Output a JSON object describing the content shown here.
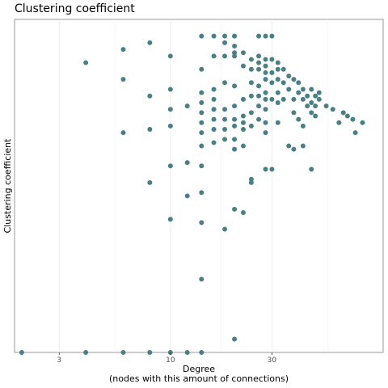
{
  "chart_data": {
    "type": "scatter",
    "title": "Clustering coefficient",
    "xlabel": "Degree",
    "xlabel_sub": "(nodes with this amount of connections)",
    "ylabel": "Clustering coefficient",
    "x_scale": "log10",
    "xlim": [
      1.85,
      100
    ],
    "ylim": [
      0,
      1
    ],
    "x_ticks": [
      3,
      10,
      30
    ],
    "x_tick_labels": [
      "3",
      "10",
      "30"
    ],
    "y_ticks": [],
    "grid": "vertical",
    "color": "#4a7f86",
    "points": [
      {
        "x": 2,
        "y": 0
      },
      {
        "x": 4,
        "y": 0
      },
      {
        "x": 6,
        "y": 0
      },
      {
        "x": 8,
        "y": 0
      },
      {
        "x": 10,
        "y": 0
      },
      {
        "x": 12,
        "y": 0
      },
      {
        "x": 14,
        "y": 0
      },
      {
        "x": 4,
        "y": 0.87
      },
      {
        "x": 6,
        "y": 0.91
      },
      {
        "x": 6,
        "y": 0.82
      },
      {
        "x": 6,
        "y": 0.66
      },
      {
        "x": 8,
        "y": 0.93
      },
      {
        "x": 8,
        "y": 0.77
      },
      {
        "x": 8,
        "y": 0.67
      },
      {
        "x": 8,
        "y": 0.51
      },
      {
        "x": 10,
        "y": 0.89
      },
      {
        "x": 10,
        "y": 0.79
      },
      {
        "x": 10,
        "y": 0.73
      },
      {
        "x": 10,
        "y": 0.68
      },
      {
        "x": 10,
        "y": 0.56
      },
      {
        "x": 10,
        "y": 0.4
      },
      {
        "x": 12,
        "y": 0.74
      },
      {
        "x": 12,
        "y": 0.57
      },
      {
        "x": 12,
        "y": 0.47
      },
      {
        "x": 14,
        "y": 0.95
      },
      {
        "x": 14,
        "y": 0.85
      },
      {
        "x": 14,
        "y": 0.78
      },
      {
        "x": 14,
        "y": 0.75
      },
      {
        "x": 14,
        "y": 0.72
      },
      {
        "x": 14,
        "y": 0.69
      },
      {
        "x": 14,
        "y": 0.66
      },
      {
        "x": 14,
        "y": 0.62
      },
      {
        "x": 14,
        "y": 0.56
      },
      {
        "x": 14,
        "y": 0.48
      },
      {
        "x": 14,
        "y": 0.39
      },
      {
        "x": 14,
        "y": 0.22
      },
      {
        "x": 16,
        "y": 0.95
      },
      {
        "x": 16,
        "y": 0.89
      },
      {
        "x": 16,
        "y": 0.79
      },
      {
        "x": 16,
        "y": 0.76
      },
      {
        "x": 16,
        "y": 0.73
      },
      {
        "x": 16,
        "y": 0.7
      },
      {
        "x": 16,
        "y": 0.67
      },
      {
        "x": 16,
        "y": 0.63
      },
      {
        "x": 18,
        "y": 0.95
      },
      {
        "x": 18,
        "y": 0.93
      },
      {
        "x": 18,
        "y": 0.89
      },
      {
        "x": 18,
        "y": 0.81
      },
      {
        "x": 18,
        "y": 0.73
      },
      {
        "x": 18,
        "y": 0.7
      },
      {
        "x": 18,
        "y": 0.67
      },
      {
        "x": 18,
        "y": 0.64
      },
      {
        "x": 18,
        "y": 0.37
      },
      {
        "x": 20,
        "y": 0.95
      },
      {
        "x": 20,
        "y": 0.92
      },
      {
        "x": 20,
        "y": 0.9
      },
      {
        "x": 20,
        "y": 0.89
      },
      {
        "x": 20,
        "y": 0.8
      },
      {
        "x": 20,
        "y": 0.74
      },
      {
        "x": 20,
        "y": 0.7
      },
      {
        "x": 20,
        "y": 0.68
      },
      {
        "x": 20,
        "y": 0.64
      },
      {
        "x": 20,
        "y": 0.61
      },
      {
        "x": 20,
        "y": 0.43
      },
      {
        "x": 20,
        "y": 0.04
      },
      {
        "x": 22,
        "y": 0.9
      },
      {
        "x": 22,
        "y": 0.86
      },
      {
        "x": 22,
        "y": 0.76
      },
      {
        "x": 22,
        "y": 0.71
      },
      {
        "x": 22,
        "y": 0.69
      },
      {
        "x": 22,
        "y": 0.67
      },
      {
        "x": 22,
        "y": 0.62
      },
      {
        "x": 22,
        "y": 0.42
      },
      {
        "x": 24,
        "y": 0.88
      },
      {
        "x": 24,
        "y": 0.85
      },
      {
        "x": 24,
        "y": 0.81
      },
      {
        "x": 24,
        "y": 0.77
      },
      {
        "x": 24,
        "y": 0.72
      },
      {
        "x": 24,
        "y": 0.68
      },
      {
        "x": 24,
        "y": 0.52
      },
      {
        "x": 24,
        "y": 0.51
      },
      {
        "x": 26,
        "y": 0.95
      },
      {
        "x": 26,
        "y": 0.89
      },
      {
        "x": 26,
        "y": 0.87
      },
      {
        "x": 26,
        "y": 0.85
      },
      {
        "x": 26,
        "y": 0.8
      },
      {
        "x": 26,
        "y": 0.77
      },
      {
        "x": 26,
        "y": 0.74
      },
      {
        "x": 26,
        "y": 0.7
      },
      {
        "x": 28,
        "y": 0.95
      },
      {
        "x": 28,
        "y": 0.88
      },
      {
        "x": 28,
        "y": 0.86
      },
      {
        "x": 28,
        "y": 0.84
      },
      {
        "x": 28,
        "y": 0.82
      },
      {
        "x": 28,
        "y": 0.78
      },
      {
        "x": 28,
        "y": 0.76
      },
      {
        "x": 28,
        "y": 0.73
      },
      {
        "x": 28,
        "y": 0.69
      },
      {
        "x": 28,
        "y": 0.66
      },
      {
        "x": 28,
        "y": 0.55
      },
      {
        "x": 30,
        "y": 0.95
      },
      {
        "x": 30,
        "y": 0.88
      },
      {
        "x": 30,
        "y": 0.84
      },
      {
        "x": 30,
        "y": 0.81
      },
      {
        "x": 30,
        "y": 0.76
      },
      {
        "x": 30,
        "y": 0.55
      },
      {
        "x": 32,
        "y": 0.87
      },
      {
        "x": 32,
        "y": 0.85
      },
      {
        "x": 32,
        "y": 0.82
      },
      {
        "x": 32,
        "y": 0.78
      },
      {
        "x": 32,
        "y": 0.75
      },
      {
        "x": 32,
        "y": 0.69
      },
      {
        "x": 34,
        "y": 0.85
      },
      {
        "x": 34,
        "y": 0.81
      },
      {
        "x": 34,
        "y": 0.76
      },
      {
        "x": 36,
        "y": 0.83
      },
      {
        "x": 36,
        "y": 0.79
      },
      {
        "x": 36,
        "y": 0.62
      },
      {
        "x": 38,
        "y": 0.82
      },
      {
        "x": 38,
        "y": 0.76
      },
      {
        "x": 38,
        "y": 0.72
      },
      {
        "x": 38,
        "y": 0.61
      },
      {
        "x": 40,
        "y": 0.81
      },
      {
        "x": 40,
        "y": 0.78
      },
      {
        "x": 40,
        "y": 0.7
      },
      {
        "x": 42,
        "y": 0.79
      },
      {
        "x": 42,
        "y": 0.76
      },
      {
        "x": 42,
        "y": 0.68
      },
      {
        "x": 42,
        "y": 0.62
      },
      {
        "x": 44,
        "y": 0.77
      },
      {
        "x": 44,
        "y": 0.74
      },
      {
        "x": 46,
        "y": 0.79
      },
      {
        "x": 46,
        "y": 0.75
      },
      {
        "x": 46,
        "y": 0.72
      },
      {
        "x": 46,
        "y": 0.55
      },
      {
        "x": 48,
        "y": 0.77
      },
      {
        "x": 48,
        "y": 0.74
      },
      {
        "x": 48,
        "y": 0.71
      },
      {
        "x": 50,
        "y": 0.78
      },
      {
        "x": 50,
        "y": 0.76
      },
      {
        "x": 54,
        "y": 0.74
      },
      {
        "x": 58,
        "y": 0.73
      },
      {
        "x": 62,
        "y": 0.69
      },
      {
        "x": 65,
        "y": 0.72
      },
      {
        "x": 68,
        "y": 0.71
      },
      {
        "x": 72,
        "y": 0.7
      },
      {
        "x": 74,
        "y": 0.66
      },
      {
        "x": 80,
        "y": 0.69
      }
    ]
  }
}
